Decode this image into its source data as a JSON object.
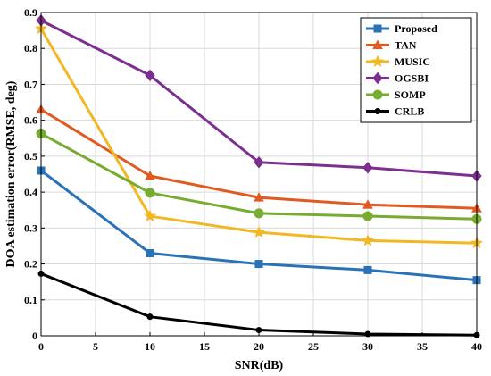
{
  "chart_data": {
    "type": "line",
    "xlabel": "SNR(dB)",
    "ylabel": "DOA estimation error(RMSE, deg)",
    "xlim": [
      0,
      40
    ],
    "ylim": [
      0,
      0.9
    ],
    "xticks": [
      "0",
      "5",
      "10",
      "15",
      "20",
      "25",
      "30",
      "35",
      "40"
    ],
    "yticks": [
      "0",
      "0.1",
      "0.2",
      "0.3",
      "0.4",
      "0.5",
      "0.6",
      "0.7",
      "0.8",
      "0.9"
    ],
    "grid": true,
    "legend_position": "top-right",
    "x": [
      0,
      10,
      20,
      30,
      40
    ],
    "series": [
      {
        "name": "Proposed",
        "color": "#2a72b8",
        "marker": "square",
        "values": [
          0.46,
          0.23,
          0.2,
          0.183,
          0.155
        ]
      },
      {
        "name": "TAN",
        "color": "#e05a22",
        "marker": "triangle",
        "values": [
          0.63,
          0.445,
          0.385,
          0.365,
          0.355
        ]
      },
      {
        "name": "MUSIC",
        "color": "#f2b824",
        "marker": "star",
        "values": [
          0.855,
          0.333,
          0.288,
          0.265,
          0.258
        ]
      },
      {
        "name": "OGSBI",
        "color": "#7b2f8e",
        "marker": "diamond",
        "values": [
          0.878,
          0.725,
          0.483,
          0.468,
          0.445
        ]
      },
      {
        "name": "SOMP",
        "color": "#77ac30",
        "marker": "circle",
        "values": [
          0.563,
          0.398,
          0.341,
          0.333,
          0.325
        ]
      },
      {
        "name": "CRLB",
        "color": "#000000",
        "marker": "dot",
        "values": [
          0.173,
          0.053,
          0.016,
          0.005,
          0.002
        ]
      }
    ]
  }
}
